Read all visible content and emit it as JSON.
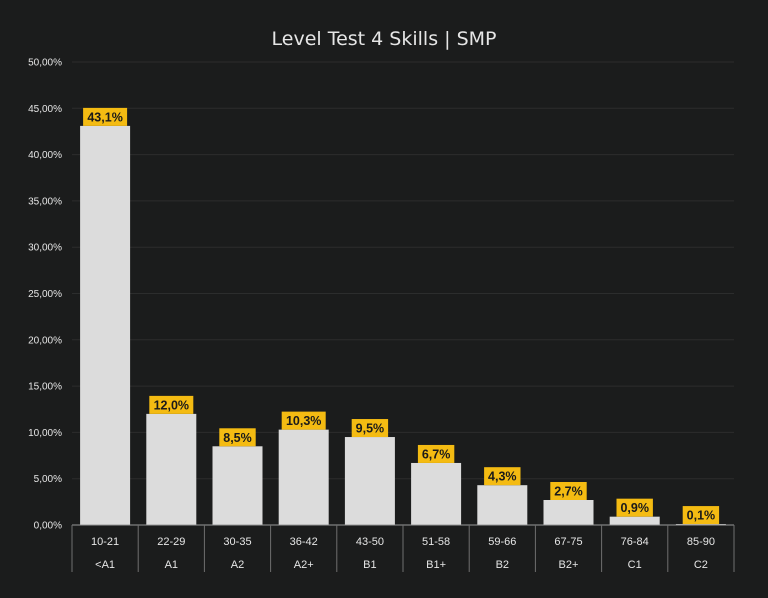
{
  "chart_data": {
    "type": "bar",
    "title": "Level Test 4 Skills | SMP",
    "xlabel": "",
    "ylabel": "",
    "ylim": [
      0,
      50
    ],
    "yticks": [
      "0,00%",
      "5,00%",
      "10,00%",
      "15,00%",
      "20,00%",
      "25,00%",
      "30,00%",
      "35,00%",
      "40,00%",
      "45,00%",
      "50,00%"
    ],
    "categories": [
      "10-21",
      "22-29",
      "30-35",
      "36-42",
      "43-50",
      "51-58",
      "59-66",
      "67-75",
      "76-84",
      "85-90"
    ],
    "levels": [
      "<A1",
      "A1",
      "A2",
      "A2+",
      "B1",
      "B1+",
      "B2",
      "B2+",
      "C1",
      "C2"
    ],
    "values": [
      43.1,
      12.0,
      8.5,
      10.3,
      9.5,
      6.7,
      4.3,
      2.7,
      0.9,
      0.1
    ],
    "data_labels": [
      "43,1%",
      "12,0%",
      "8,5%",
      "10,3%",
      "9,5%",
      "6,7%",
      "4,3%",
      "2,7%",
      "0,9%",
      "0,1%"
    ],
    "grid": true,
    "legend": "none",
    "colors": {
      "background": "#1b1c1c",
      "bar": "#dcdcdc",
      "label_background": "#f4bb12",
      "label_text": "#1a1a1a",
      "text": "#e6e6e6",
      "grid": "#2c2d2d"
    }
  }
}
